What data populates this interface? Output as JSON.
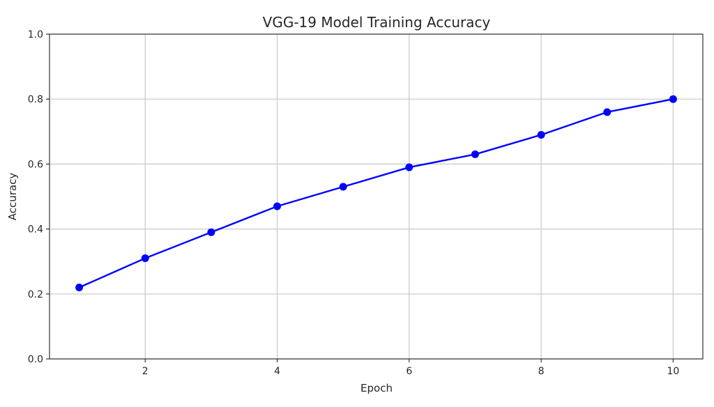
{
  "chart_data": {
    "type": "line",
    "title": "VGG-19 Model Training Accuracy",
    "xlabel": "Epoch",
    "ylabel": "Accuracy",
    "xlim": [
      0.55,
      10.45
    ],
    "ylim": [
      0.0,
      1.0
    ],
    "xticks": [
      2,
      4,
      6,
      8,
      10
    ],
    "xtick_labels": [
      "2",
      "4",
      "6",
      "8",
      "10"
    ],
    "yticks": [
      0.0,
      0.2,
      0.4,
      0.6,
      0.8,
      1.0
    ],
    "ytick_labels": [
      "0.0",
      "0.2",
      "0.4",
      "0.6",
      "0.8",
      "1.0"
    ],
    "grid": true,
    "series": [
      {
        "color": "#0000ff",
        "marker": "circle",
        "x": [
          1,
          2,
          3,
          4,
          5,
          6,
          7,
          8,
          9,
          10
        ],
        "y": [
          0.22,
          0.31,
          0.39,
          0.47,
          0.53,
          0.59,
          0.63,
          0.69,
          0.76,
          0.8
        ]
      }
    ]
  }
}
